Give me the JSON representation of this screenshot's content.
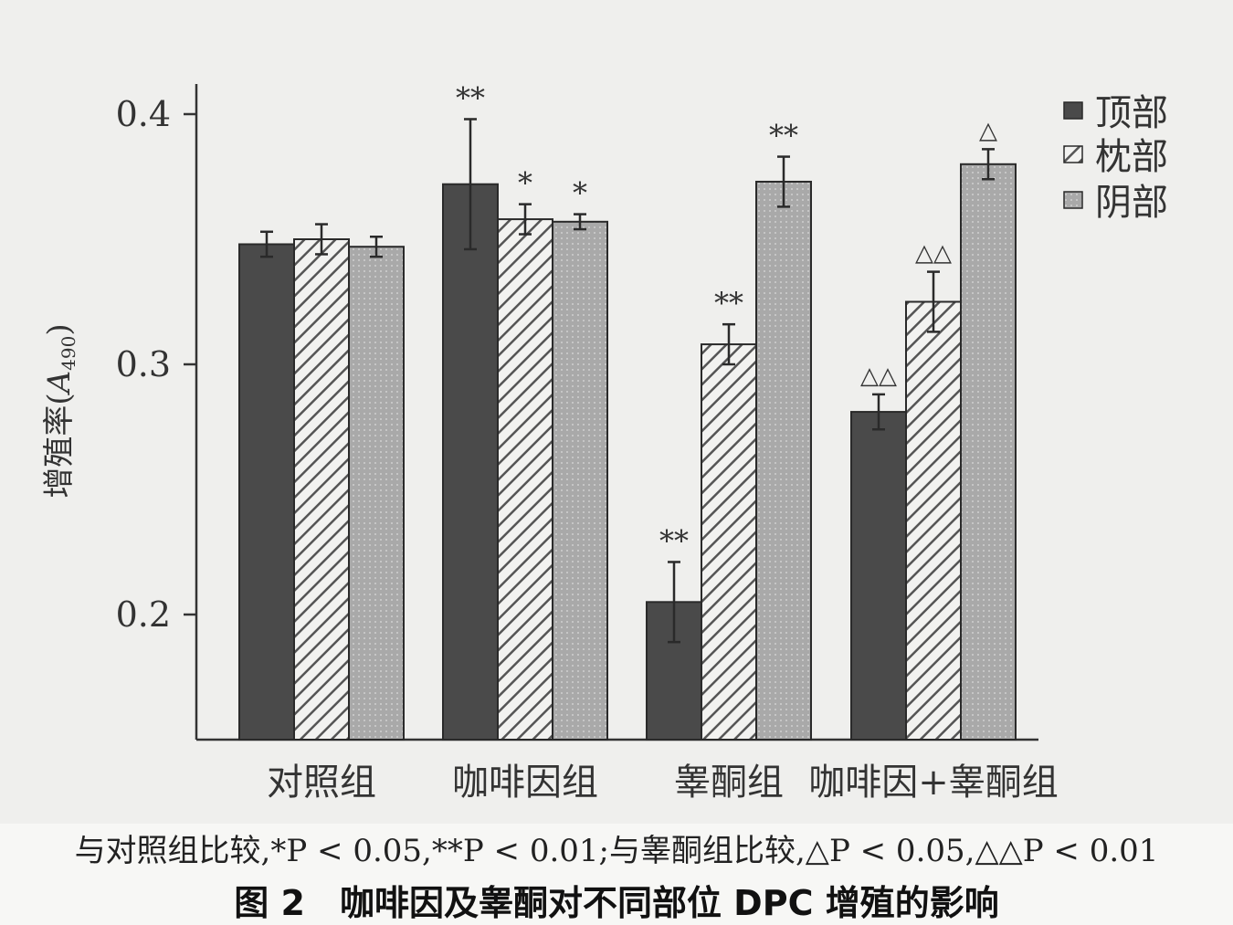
{
  "chart_data": {
    "type": "bar",
    "ylabel": "增殖率(A490)",
    "ylabel_main": "增殖率(",
    "ylabel_var": "A",
    "ylabel_sub": "490",
    "ylabel_close": ")",
    "ylim": [
      0.15,
      0.41
    ],
    "yticks": [
      0.2,
      0.3,
      0.4
    ],
    "ytick_labels": [
      "0.2",
      "0.3",
      "0.4"
    ],
    "grid": false,
    "legend_position": "top-right",
    "categories": [
      "对照组",
      "咖啡因组",
      "睾酮组",
      "咖啡因+睾酮组"
    ],
    "series": [
      {
        "name": "顶部",
        "pattern": "solid",
        "color": "#4a4a4a",
        "values": [
          0.348,
          0.372,
          0.205,
          0.281
        ],
        "errors": [
          0.005,
          0.026,
          0.016,
          0.007
        ],
        "annotations": [
          "",
          "**",
          "**",
          "△△"
        ]
      },
      {
        "name": "枕部",
        "pattern": "hatch",
        "color": "#c9c9c9",
        "values": [
          0.35,
          0.358,
          0.308,
          0.325
        ],
        "errors": [
          0.006,
          0.006,
          0.008,
          0.012
        ],
        "annotations": [
          "",
          "*",
          "**",
          "△△"
        ]
      },
      {
        "name": "阴部",
        "pattern": "dotted",
        "color": "#a4a4a4",
        "values": [
          0.347,
          0.357,
          0.373,
          0.38
        ],
        "errors": [
          0.004,
          0.003,
          0.01,
          0.006
        ],
        "annotations": [
          "",
          "*",
          "**",
          "△"
        ]
      }
    ]
  },
  "caption": {
    "note": "与对照组比较,*P < 0.05,**P < 0.01;与睾酮组比较,△P < 0.05,△△P < 0.01",
    "title": "图 2　咖啡因及睾酮对不同部位 DPC 增殖的影响"
  }
}
